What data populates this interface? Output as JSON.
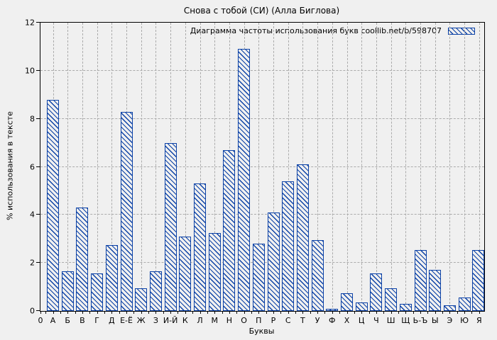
{
  "title": "Снова с тобой (СИ) (Алла Биглова)",
  "legend_label": "Диаграмма частоты использования букв coollib.net/b/598707",
  "x_axis_title": "Буквы",
  "y_axis_title": "% использования в тексте",
  "origin_label": "0",
  "colors": {
    "bar_blue": "#0b41a6",
    "grid_gray": "#ababab",
    "background": "#f0f0f0",
    "axis": "#000000"
  },
  "chart_data": {
    "type": "bar",
    "title": "Снова с тобой (СИ) (Алла Биглова)",
    "legend": [
      "Диаграмма частоты использования букв coollib.net/b/598707"
    ],
    "legend_position": "top-right-inside",
    "xlabel": "Буквы",
    "ylabel": "% использования в тексте",
    "ylim": [
      0,
      12
    ],
    "yticks": [
      0,
      2,
      4,
      6,
      8,
      10,
      12
    ],
    "ygrid_values": [
      2,
      4,
      6,
      8,
      10
    ],
    "grid": true,
    "bar_style": "blue diagonal hatch, no fill",
    "categories": [
      "А",
      "Б",
      "В",
      "Г",
      "Д",
      "Е-Ё",
      "Ж",
      "З",
      "И-Й",
      "К",
      "Л",
      "М",
      "Н",
      "О",
      "П",
      "Р",
      "С",
      "Т",
      "У",
      "Ф",
      "Х",
      "Ц",
      "Ч",
      "Ш",
      "Щ",
      "Ь-Ъ",
      "Ы",
      "Э",
      "Ю",
      "Я"
    ],
    "values": [
      8.8,
      1.65,
      4.3,
      1.55,
      2.75,
      8.3,
      0.95,
      1.65,
      7.0,
      3.1,
      5.3,
      3.25,
      6.7,
      10.9,
      2.8,
      4.1,
      5.4,
      6.1,
      2.95,
      0.1,
      0.75,
      0.35,
      1.55,
      0.95,
      0.3,
      2.55,
      1.7,
      0.25,
      0.55,
      2.55
    ]
  }
}
